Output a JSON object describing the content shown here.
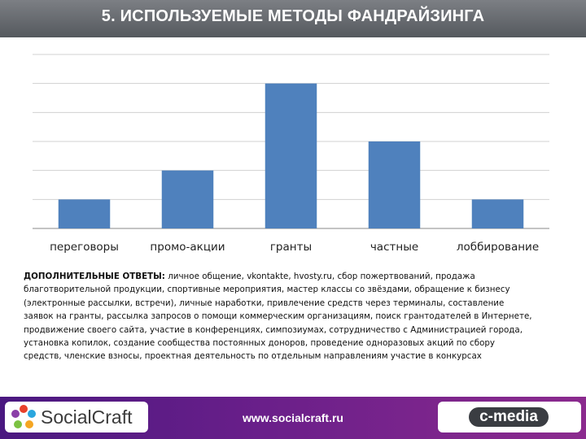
{
  "title": "5. ИСПОЛЬЗУЕМЫЕ МЕТОДЫ ФАНДРАЙЗИНГА",
  "chart_data": {
    "type": "bar",
    "categories": [
      "переговоры",
      "промо-акции",
      "гранты",
      "частные",
      "лоббирование"
    ],
    "values": [
      1,
      2,
      5,
      3,
      1
    ],
    "ylim": [
      0,
      6
    ],
    "grid": true,
    "bar_color": "#4f81bd",
    "legend": "none"
  },
  "answers": {
    "label": "ДОПОЛНИТЕЛЬНЫЕ ОТВЕТЫ:",
    "lines": [
      "личное общение, vkontakte, hvosty.ru, сбор пожертвований, продажа",
      "благотворительной продукции, спортивные мероприятия, мастер классы со звёздами, обращение к бизнесу",
      "(электронные рассылки, встречи), личные наработки, привлечение средств через терминалы, составление",
      "заявок на гранты, рассылка запросов о помощи коммерческим организациям, поиск грантодателей в Интернете,",
      "продвижение своего сайта, участие в конференциях, симпозиумах, сотрудничество с Администрацией города,",
      "установка копилок, создание сообщества постоянных доноров, проведение одноразовых акций по сбору",
      "средств, членские взносы, проектная деятельность по отдельным направлениям участие в конкурсах"
    ]
  },
  "footer": {
    "left_logo": "SocialCraft",
    "url": "www.socialcraft.ru",
    "right_logo": "c-media"
  },
  "colors": {
    "title_bar": "#6a6e73",
    "footer": "#6a1f8a",
    "bar": "#4f81bd"
  }
}
